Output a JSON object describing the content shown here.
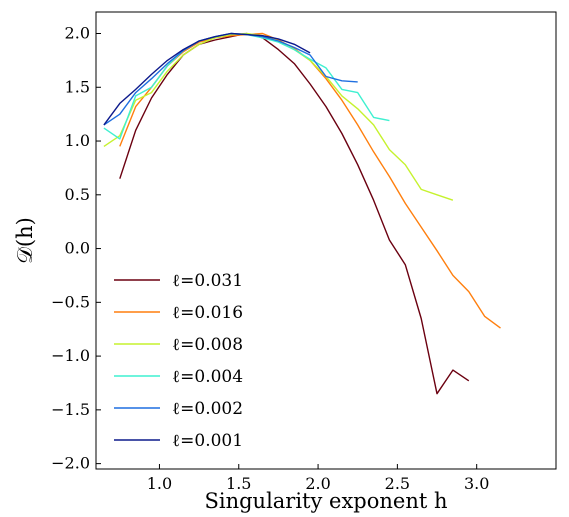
{
  "chart_data": {
    "type": "line",
    "xlabel": "Singularity exponent h",
    "ylabel": "𝒟(h)",
    "xlim": [
      0.6,
      3.5
    ],
    "ylim": [
      -2.05,
      2.2
    ],
    "xticks": [
      1.0,
      1.5,
      2.0,
      2.5,
      3.0
    ],
    "xtick_labels": [
      "1.0",
      "1.5",
      "2.0",
      "2.5",
      "3.0"
    ],
    "yticks": [
      -2.0,
      -1.5,
      -1.0,
      -0.5,
      0.0,
      0.5,
      1.0,
      1.5,
      2.0
    ],
    "ytick_labels": [
      "−2.0",
      "−1.5",
      "−1.0",
      "−0.5",
      "0.0",
      "0.5",
      "1.0",
      "1.5",
      "2.0"
    ],
    "grid": false,
    "legend_position": "lower-left",
    "series": [
      {
        "name": "ℓ=0.031",
        "color": "#6b0010",
        "x": [
          0.75,
          0.85,
          0.95,
          1.05,
          1.15,
          1.25,
          1.35,
          1.45,
          1.55,
          1.65,
          1.75,
          1.85,
          1.95,
          2.05,
          2.15,
          2.25,
          2.35,
          2.45,
          2.55,
          2.65,
          2.75,
          2.85,
          2.95
        ],
        "y": [
          0.65,
          1.1,
          1.4,
          1.62,
          1.8,
          1.9,
          1.94,
          1.97,
          2.0,
          1.96,
          1.85,
          1.72,
          1.53,
          1.32,
          1.07,
          0.78,
          0.45,
          0.08,
          -0.15,
          -0.65,
          -1.35,
          -1.13,
          -1.23
        ]
      },
      {
        "name": "ℓ=0.016",
        "color": "#ff7f0e",
        "x": [
          0.75,
          0.85,
          0.95,
          1.05,
          1.15,
          1.25,
          1.35,
          1.45,
          1.55,
          1.65,
          1.75,
          1.85,
          1.95,
          2.05,
          2.15,
          2.25,
          2.35,
          2.45,
          2.55,
          2.65,
          2.75,
          2.85,
          2.95,
          3.05,
          3.15
        ],
        "y": [
          0.95,
          1.32,
          1.5,
          1.7,
          1.83,
          1.92,
          1.96,
          1.98,
          1.99,
          2.0,
          1.94,
          1.86,
          1.75,
          1.58,
          1.38,
          1.15,
          0.9,
          0.67,
          0.42,
          0.2,
          -0.02,
          -0.25,
          -0.4,
          -0.63,
          -0.74
        ]
      },
      {
        "name": "ℓ=0.008",
        "color": "#c6f22e",
        "x": [
          0.65,
          0.75,
          0.85,
          0.95,
          1.05,
          1.15,
          1.25,
          1.35,
          1.45,
          1.55,
          1.65,
          1.75,
          1.85,
          1.95,
          2.05,
          2.15,
          2.25,
          2.35,
          2.45,
          2.55,
          2.65,
          2.75,
          2.85
        ],
        "y": [
          0.95,
          1.05,
          1.38,
          1.45,
          1.65,
          1.8,
          1.9,
          1.96,
          1.99,
          2.0,
          1.98,
          1.93,
          1.85,
          1.75,
          1.6,
          1.42,
          1.3,
          1.15,
          0.92,
          0.78,
          0.55,
          0.5,
          0.45
        ]
      },
      {
        "name": "ℓ=0.004",
        "color": "#3ff0d0",
        "x": [
          0.65,
          0.75,
          0.85,
          0.95,
          1.05,
          1.15,
          1.25,
          1.35,
          1.45,
          1.55,
          1.65,
          1.75,
          1.85,
          1.95,
          2.05,
          2.15,
          2.25,
          2.35,
          2.45
        ],
        "y": [
          1.12,
          1.02,
          1.42,
          1.5,
          1.7,
          1.84,
          1.93,
          1.97,
          2.0,
          1.99,
          1.96,
          1.92,
          1.85,
          1.76,
          1.68,
          1.48,
          1.45,
          1.22,
          1.19
        ]
      },
      {
        "name": "ℓ=0.002",
        "color": "#1f6fe0",
        "x": [
          0.65,
          0.75,
          0.85,
          0.95,
          1.05,
          1.15,
          1.25,
          1.35,
          1.45,
          1.55,
          1.65,
          1.75,
          1.85,
          1.95,
          2.05,
          2.15,
          2.25
        ],
        "y": [
          1.15,
          1.25,
          1.45,
          1.58,
          1.72,
          1.84,
          1.93,
          1.97,
          2.0,
          1.99,
          1.97,
          1.93,
          1.87,
          1.8,
          1.6,
          1.56,
          1.55
        ]
      },
      {
        "name": "ℓ=0.001",
        "color": "#0d1a8c",
        "x": [
          0.65,
          0.75,
          0.85,
          0.95,
          1.05,
          1.15,
          1.25,
          1.35,
          1.45,
          1.55,
          1.65,
          1.75,
          1.85,
          1.95
        ],
        "y": [
          1.15,
          1.35,
          1.48,
          1.62,
          1.75,
          1.85,
          1.93,
          1.97,
          2.0,
          1.99,
          1.98,
          1.95,
          1.9,
          1.82
        ]
      }
    ]
  }
}
